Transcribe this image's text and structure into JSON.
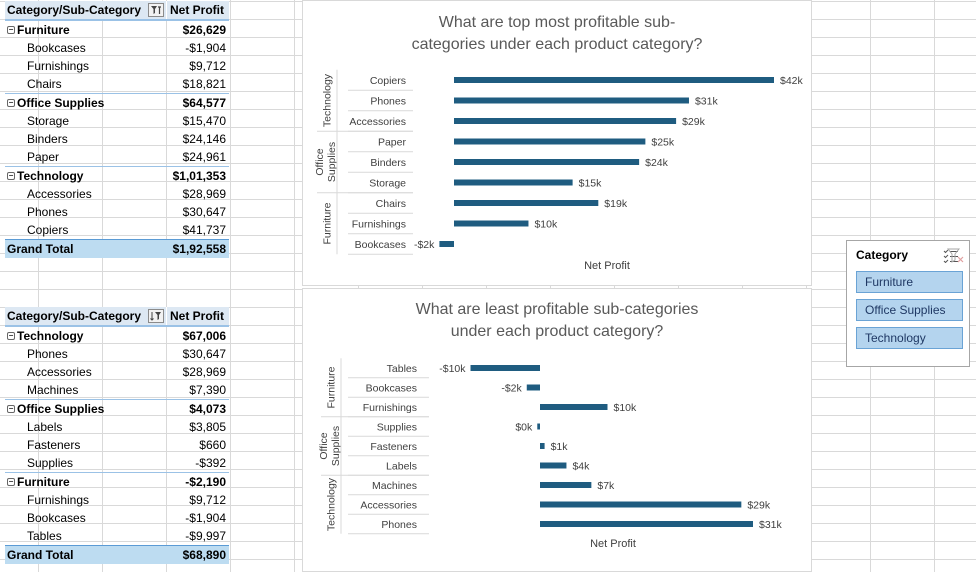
{
  "pivot_top": {
    "col1_header": "Category/Sub-Category",
    "col2_header": "Net Profit",
    "rows": [
      {
        "kind": "cat",
        "label": "Furniture",
        "value": "$26,629"
      },
      {
        "kind": "sub",
        "label": "Bookcases",
        "value": "-$1,904"
      },
      {
        "kind": "sub",
        "label": "Furnishings",
        "value": "$9,712"
      },
      {
        "kind": "sub",
        "label": "Chairs",
        "value": "$18,821"
      },
      {
        "kind": "cat",
        "label": "Office Supplies",
        "value": "$64,577"
      },
      {
        "kind": "sub",
        "label": "Storage",
        "value": "$15,470"
      },
      {
        "kind": "sub",
        "label": "Binders",
        "value": "$24,146"
      },
      {
        "kind": "sub",
        "label": "Paper",
        "value": "$24,961"
      },
      {
        "kind": "cat",
        "label": "Technology",
        "value": "$1,01,353"
      },
      {
        "kind": "sub",
        "label": "Accessories",
        "value": "$28,969"
      },
      {
        "kind": "sub",
        "label": "Phones",
        "value": "$30,647"
      },
      {
        "kind": "sub",
        "label": "Copiers",
        "value": "$41,737"
      },
      {
        "kind": "total",
        "label": "Grand Total",
        "value": "$1,92,558"
      }
    ]
  },
  "pivot_bottom": {
    "col1_header": "Category/Sub-Category",
    "col2_header": "Net Profit",
    "rows": [
      {
        "kind": "cat",
        "label": "Technology",
        "value": "$67,006"
      },
      {
        "kind": "sub",
        "label": "Phones",
        "value": "$30,647"
      },
      {
        "kind": "sub",
        "label": "Accessories",
        "value": "$28,969"
      },
      {
        "kind": "sub",
        "label": "Machines",
        "value": "$7,390"
      },
      {
        "kind": "cat",
        "label": "Office Supplies",
        "value": "$4,073"
      },
      {
        "kind": "sub",
        "label": "Labels",
        "value": "$3,805"
      },
      {
        "kind": "sub",
        "label": "Fasteners",
        "value": "$660"
      },
      {
        "kind": "sub",
        "label": "Supplies",
        "value": "-$392"
      },
      {
        "kind": "cat",
        "label": "Furniture",
        "value": "-$2,190"
      },
      {
        "kind": "sub",
        "label": "Furnishings",
        "value": "$9,712"
      },
      {
        "kind": "sub",
        "label": "Bookcases",
        "value": "-$1,904"
      },
      {
        "kind": "sub",
        "label": "Tables",
        "value": "-$9,997"
      },
      {
        "kind": "total",
        "label": "Grand Total",
        "value": "$68,890"
      }
    ]
  },
  "colors": {
    "bar": "#1f5c80",
    "header_bg": "#dde8f3",
    "total_bg": "#bddcf1",
    "slicer_btn": "#b4d4ee"
  },
  "chart_data": [
    {
      "type": "bar",
      "orientation": "horizontal",
      "title": "What are top most profitable sub-categories under each product category?",
      "xlabel": "Net Profit",
      "groups": [
        {
          "name": "Technology",
          "categories": [
            "Copiers",
            "Phones",
            "Accessories"
          ]
        },
        {
          "name": "Office Supplies",
          "categories": [
            "Paper",
            "Binders",
            "Storage"
          ]
        },
        {
          "name": "Furniture",
          "categories": [
            "Chairs",
            "Furnishings",
            "Bookcases"
          ]
        }
      ],
      "categories": [
        "Copiers",
        "Phones",
        "Accessories",
        "Paper",
        "Binders",
        "Storage",
        "Chairs",
        "Furnishings",
        "Bookcases"
      ],
      "values": [
        41737,
        30647,
        28969,
        24961,
        24146,
        15470,
        18821,
        9712,
        -1904
      ],
      "data_labels": [
        "$42k",
        "$31k",
        "$29k",
        "$25k",
        "$24k",
        "$15k",
        "$19k",
        "$10k",
        "-$2k"
      ]
    },
    {
      "type": "bar",
      "orientation": "horizontal",
      "title": "What are least profitable sub-categories under each product category?",
      "xlabel": "Net Profit",
      "groups": [
        {
          "name": "Furniture",
          "categories": [
            "Tables",
            "Bookcases",
            "Furnishings"
          ]
        },
        {
          "name": "Office Supplies",
          "categories": [
            "Supplies",
            "Fasteners",
            "Labels"
          ]
        },
        {
          "name": "Technology",
          "categories": [
            "Machines",
            "Accessories",
            "Phones"
          ]
        }
      ],
      "categories": [
        "Tables",
        "Bookcases",
        "Furnishings",
        "Supplies",
        "Fasteners",
        "Labels",
        "Machines",
        "Accessories",
        "Phones"
      ],
      "values": [
        -9997,
        -1904,
        9712,
        -392,
        660,
        3805,
        7390,
        28969,
        30647
      ],
      "data_labels": [
        "-$10k",
        "-$2k",
        "$10k",
        "$0k",
        "$1k",
        "$4k",
        "$7k",
        "$29k",
        "$31k"
      ]
    }
  ],
  "slicer": {
    "title": "Category",
    "items": [
      "Furniture",
      "Office Supplies",
      "Technology"
    ]
  }
}
